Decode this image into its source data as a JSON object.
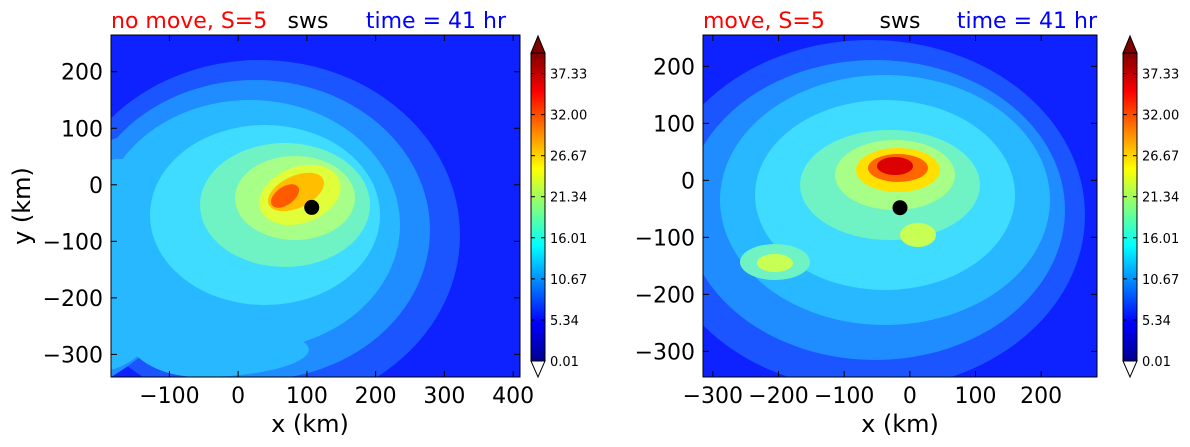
{
  "colors": {
    "left_title": "#ff0000",
    "center_title": "#000000",
    "right_title": "#0000ff",
    "marker": "#000000"
  },
  "chart_data": [
    {
      "type": "contourf",
      "titles": {
        "left": "no move, S=5",
        "center": "sws",
        "right": "time = 41 hr"
      },
      "xlabel": "x (km)",
      "ylabel": "y (km)",
      "xlim": [
        -185,
        410
      ],
      "ylim": [
        -340,
        265
      ],
      "xticks": [
        -100,
        0,
        100,
        200,
        300,
        400
      ],
      "xtick_labels": [
        "−100",
        "0",
        "100",
        "200",
        "300",
        "400"
      ],
      "yticks": [
        200,
        100,
        0,
        -100,
        -200,
        -300
      ],
      "ytick_labels": [
        "200",
        "100",
        "0",
        "−100",
        "−200",
        "−300"
      ],
      "center": [
        107,
        -40
      ],
      "colorbar": {
        "levels": [
          "37.33",
          "32.00",
          "26.67",
          "21.34",
          "16.01",
          "10.67",
          "5.34",
          "0.01"
        ],
        "min": 0.01,
        "max": 40.0,
        "extend": "both",
        "colormap": "jet"
      },
      "field_features": [
        {
          "desc": "wind maximum",
          "x": 90,
          "y": -15,
          "value": 31
        },
        {
          "desc": "inner ring",
          "x": 100,
          "y": -25,
          "value": 22
        },
        {
          "desc": "outer ring",
          "x": 110,
          "y": -30,
          "value": 17
        },
        {
          "desc": "southern band",
          "x": 40,
          "y": -290,
          "value": 17
        },
        {
          "desc": "western band",
          "x": -150,
          "y": -20,
          "value": 18
        },
        {
          "desc": "far field",
          "x": 380,
          "y": 240,
          "value": 4
        }
      ]
    },
    {
      "type": "contourf",
      "titles": {
        "left": "move, S=5",
        "center": "sws",
        "right": "time = 41 hr"
      },
      "xlabel": "x (km)",
      "ylabel": "",
      "xlim": [
        -315,
        285
      ],
      "ylim": [
        -345,
        255
      ],
      "xticks": [
        -300,
        -200,
        -100,
        0,
        100,
        200
      ],
      "xtick_labels": [
        "−300",
        "−200",
        "−100",
        "0",
        "100",
        "200"
      ],
      "yticks": [
        200,
        100,
        0,
        -100,
        -200,
        -300
      ],
      "ytick_labels": [
        "200",
        "100",
        "0",
        "−100",
        "−200",
        "−300"
      ],
      "center": [
        -15,
        -48
      ],
      "colorbar": {
        "levels": [
          "37.33",
          "32.00",
          "26.67",
          "21.34",
          "16.01",
          "10.67",
          "5.34",
          "0.01"
        ],
        "min": 0.01,
        "max": 40.0,
        "extend": "both",
        "colormap": "jet"
      },
      "field_features": [
        {
          "desc": "wind maximum",
          "x": -10,
          "y": 20,
          "value": 34
        },
        {
          "desc": "inner ring",
          "x": -20,
          "y": 0,
          "value": 22
        },
        {
          "desc": "outer ring",
          "x": -30,
          "y": -40,
          "value": 16
        },
        {
          "desc": "southwest maximum",
          "x": -200,
          "y": -155,
          "value": 20
        },
        {
          "desc": "east maximum",
          "x": 15,
          "y": -100,
          "value": 21
        },
        {
          "desc": "far field",
          "x": 250,
          "y": 230,
          "value": 3
        }
      ]
    }
  ]
}
